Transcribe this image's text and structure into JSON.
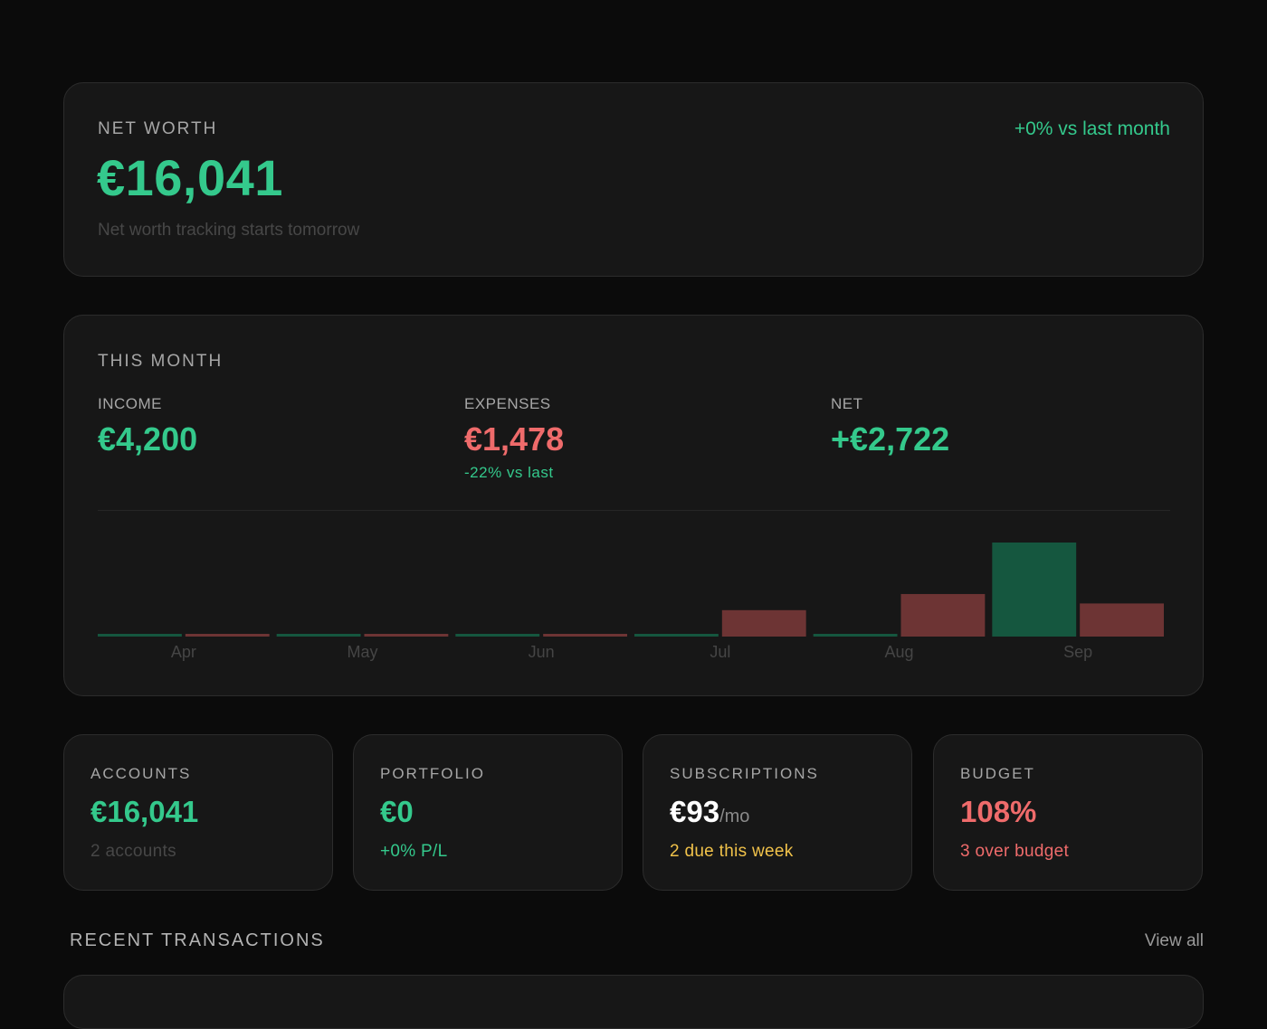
{
  "net_worth": {
    "label": "NET WORTH",
    "value": "€16,041",
    "subtitle": "Net worth tracking starts tomorrow",
    "change": "+0% vs last month"
  },
  "this_month": {
    "title": "THIS MONTH",
    "income": {
      "label": "INCOME",
      "value": "€4,200"
    },
    "expenses": {
      "label": "EXPENSES",
      "value": "€1,478",
      "note": "-22% vs last"
    },
    "net": {
      "label": "NET",
      "value": "+€2,722"
    }
  },
  "chart_data": {
    "type": "bar",
    "categories": [
      "Apr",
      "May",
      "Jun",
      "Jul",
      "Aug",
      "Sep"
    ],
    "series": [
      {
        "values": [
          0,
          0,
          0,
          0,
          0,
          4200
        ]
      },
      {
        "values": [
          0,
          0,
          0,
          1180,
          1900,
          1478
        ]
      }
    ],
    "ylim": [
      0,
      4200
    ],
    "colors": [
      "#15573f",
      "#6d3434"
    ]
  },
  "cards": {
    "accounts": {
      "label": "ACCOUNTS",
      "value": "€16,041",
      "note": "2 accounts"
    },
    "portfolio": {
      "label": "PORTFOLIO",
      "value": "€0",
      "note": "+0% P/L"
    },
    "subscriptions": {
      "label": "SUBSCRIPTIONS",
      "value": "€93",
      "unit": "/mo",
      "note": "2 due this week"
    },
    "budget": {
      "label": "BUDGET",
      "value": "108%",
      "note": "3 over budget"
    }
  },
  "recent": {
    "title": "RECENT TRANSACTIONS",
    "view_all": "View all"
  }
}
